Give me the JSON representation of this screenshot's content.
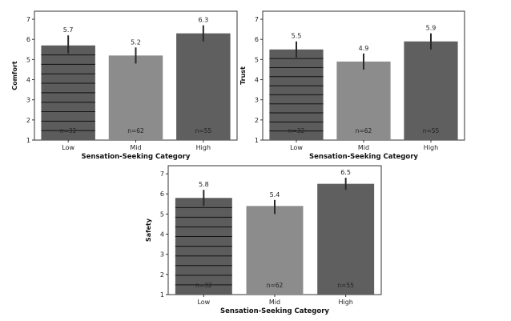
{
  "chart_data": [
    {
      "type": "bar",
      "ylabel": "Comfort",
      "xlabel": "Sensation-Seeking Category",
      "categories": [
        "Low",
        "Mid",
        "High"
      ],
      "values": [
        5.7,
        5.2,
        6.3
      ],
      "value_labels": [
        "5.7",
        "5.2",
        "6.3"
      ],
      "error_low": [
        5.3,
        4.8,
        5.9
      ],
      "error_high": [
        6.2,
        5.6,
        6.7
      ],
      "n_labels": [
        "n=32",
        "n=62",
        "n=55"
      ],
      "ylim": [
        1,
        7.4
      ],
      "yticks": [
        "1",
        "2",
        "3",
        "4",
        "5",
        "6",
        "7"
      ],
      "colors": [
        "#5c5c5c",
        "#8c8c8c",
        "#5f5f5f"
      ],
      "hatch": [
        "horizontal-lines",
        "none",
        "none"
      ]
    },
    {
      "type": "bar",
      "ylabel": "Trust",
      "xlabel": "Sensation-Seeking Category",
      "categories": [
        "Low",
        "Mid",
        "High"
      ],
      "values": [
        5.5,
        4.9,
        5.9
      ],
      "value_labels": [
        "5.5",
        "4.9",
        "5.9"
      ],
      "error_low": [
        5.1,
        4.5,
        5.5
      ],
      "error_high": [
        5.9,
        5.3,
        6.3
      ],
      "n_labels": [
        "n=32",
        "n=62",
        "n=55"
      ],
      "ylim": [
        1,
        7.4
      ],
      "yticks": [
        "1",
        "2",
        "3",
        "4",
        "5",
        "6",
        "7"
      ],
      "colors": [
        "#5c5c5c",
        "#8c8c8c",
        "#5f5f5f"
      ],
      "hatch": [
        "horizontal-lines",
        "none",
        "none"
      ]
    },
    {
      "type": "bar",
      "ylabel": "Safety",
      "xlabel": "Sensation-Seeking Category",
      "categories": [
        "Low",
        "Mid",
        "High"
      ],
      "values": [
        5.8,
        5.4,
        6.5
      ],
      "value_labels": [
        "5.8",
        "5.4",
        "6.5"
      ],
      "error_low": [
        5.4,
        5.0,
        6.2
      ],
      "error_high": [
        6.2,
        5.7,
        6.8
      ],
      "n_labels": [
        "n=32",
        "n=62",
        "n=55"
      ],
      "ylim": [
        1,
        7.4
      ],
      "yticks": [
        "1",
        "2",
        "3",
        "4",
        "5",
        "6",
        "7"
      ],
      "colors": [
        "#5c5c5c",
        "#8c8c8c",
        "#5f5f5f"
      ],
      "hatch": [
        "horizontal-lines",
        "none",
        "none"
      ]
    }
  ]
}
